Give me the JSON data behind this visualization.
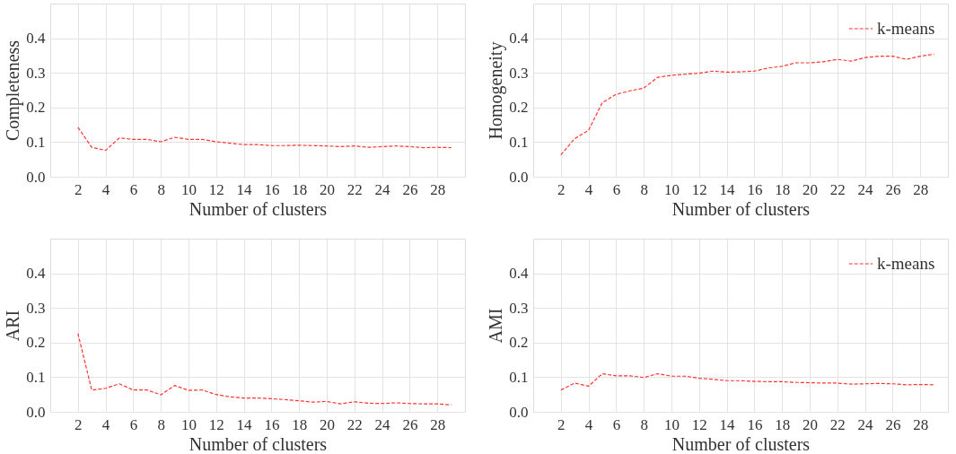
{
  "chart_data": [
    {
      "type": "line",
      "ylabel": "Completeness",
      "xlabel": "Number of clusters",
      "x": [
        2,
        3,
        4,
        5,
        6,
        7,
        8,
        9,
        10,
        11,
        12,
        13,
        14,
        15,
        16,
        17,
        18,
        19,
        20,
        21,
        22,
        23,
        24,
        25,
        26,
        27,
        28,
        29
      ],
      "xlim": [
        0,
        30
      ],
      "xticks": [
        2,
        4,
        6,
        8,
        10,
        12,
        14,
        16,
        18,
        20,
        22,
        24,
        26,
        28
      ],
      "ylim": [
        0,
        0.5
      ],
      "yticks": [
        {
          "value": 0,
          "label": "0.0"
        },
        {
          "value": 0.1,
          "label": "0.1"
        },
        {
          "value": 0.2,
          "label": "0.2"
        },
        {
          "value": 0.3,
          "label": "0.3"
        },
        {
          "value": 0.4,
          "label": "0.4"
        }
      ],
      "grid": true,
      "line_style": "dashed",
      "series": [
        {
          "color": "#ff3333",
          "values": [
            0.143,
            0.085,
            0.076,
            0.112,
            0.108,
            0.108,
            0.101,
            0.114,
            0.108,
            0.108,
            0.101,
            0.097,
            0.093,
            0.093,
            0.09,
            0.09,
            0.091,
            0.09,
            0.089,
            0.087,
            0.089,
            0.085,
            0.087,
            0.089,
            0.087,
            0.084,
            0.085,
            0.084
          ]
        }
      ]
    },
    {
      "type": "line",
      "ylabel": "Homogeneity",
      "xlabel": "Number of clusters",
      "x": [
        2,
        3,
        4,
        5,
        6,
        7,
        8,
        9,
        10,
        11,
        12,
        13,
        14,
        15,
        16,
        17,
        18,
        19,
        20,
        21,
        22,
        23,
        24,
        25,
        26,
        27,
        28,
        29
      ],
      "xlim": [
        0,
        30
      ],
      "xticks": [
        2,
        4,
        6,
        8,
        10,
        12,
        14,
        16,
        18,
        20,
        22,
        24,
        26,
        28
      ],
      "ylim": [
        0,
        0.5
      ],
      "yticks": [
        {
          "value": 0,
          "label": "0.0"
        },
        {
          "value": 0.1,
          "label": "0.1"
        },
        {
          "value": 0.2,
          "label": "0.2"
        },
        {
          "value": 0.3,
          "label": "0.3"
        },
        {
          "value": 0.4,
          "label": "0.4"
        }
      ],
      "grid": true,
      "line_style": "dashed",
      "legend": "top right",
      "series": [
        {
          "name": "k-means",
          "color": "#ff3333",
          "values": [
            0.063,
            0.11,
            0.134,
            0.214,
            0.238,
            0.248,
            0.256,
            0.287,
            0.293,
            0.296,
            0.299,
            0.305,
            0.302,
            0.303,
            0.305,
            0.314,
            0.319,
            0.329,
            0.329,
            0.332,
            0.339,
            0.334,
            0.344,
            0.348,
            0.348,
            0.339,
            0.348,
            0.354
          ]
        }
      ]
    },
    {
      "type": "line",
      "ylabel": "ARI",
      "xlabel": "Number of clusters",
      "x": [
        2,
        3,
        4,
        5,
        6,
        7,
        8,
        9,
        10,
        11,
        12,
        13,
        14,
        15,
        16,
        17,
        18,
        19,
        20,
        21,
        22,
        23,
        24,
        25,
        26,
        27,
        28,
        29
      ],
      "xlim": [
        0,
        30
      ],
      "xticks": [
        2,
        4,
        6,
        8,
        10,
        12,
        14,
        16,
        18,
        20,
        22,
        24,
        26,
        28
      ],
      "ylim": [
        0,
        0.5
      ],
      "yticks": [
        {
          "value": 0,
          "label": "0.0"
        },
        {
          "value": 0.1,
          "label": "0.1"
        },
        {
          "value": 0.2,
          "label": "0.2"
        },
        {
          "value": 0.3,
          "label": "0.3"
        },
        {
          "value": 0.4,
          "label": "0.4"
        }
      ],
      "grid": true,
      "line_style": "dashed",
      "series": [
        {
          "color": "#ff3333",
          "values": [
            0.226,
            0.063,
            0.068,
            0.081,
            0.063,
            0.063,
            0.049,
            0.076,
            0.062,
            0.063,
            0.05,
            0.043,
            0.04,
            0.04,
            0.038,
            0.035,
            0.032,
            0.028,
            0.03,
            0.023,
            0.029,
            0.025,
            0.024,
            0.026,
            0.024,
            0.023,
            0.023,
            0.02
          ]
        }
      ]
    },
    {
      "type": "line",
      "ylabel": "AMI",
      "xlabel": "Number of clusters",
      "x": [
        2,
        3,
        4,
        5,
        6,
        7,
        8,
        9,
        10,
        11,
        12,
        13,
        14,
        15,
        16,
        17,
        18,
        19,
        20,
        21,
        22,
        23,
        24,
        25,
        26,
        27,
        28,
        29
      ],
      "xlim": [
        0,
        30
      ],
      "xticks": [
        2,
        4,
        6,
        8,
        10,
        12,
        14,
        16,
        18,
        20,
        22,
        24,
        26,
        28
      ],
      "ylim": [
        0,
        0.5
      ],
      "yticks": [
        {
          "value": 0,
          "label": "0.0"
        },
        {
          "value": 0.1,
          "label": "0.1"
        },
        {
          "value": 0.2,
          "label": "0.2"
        },
        {
          "value": 0.3,
          "label": "0.3"
        },
        {
          "value": 0.4,
          "label": "0.4"
        }
      ],
      "grid": true,
      "line_style": "dashed",
      "legend": "top right",
      "series": [
        {
          "name": "k-means",
          "color": "#ff3333",
          "values": [
            0.063,
            0.083,
            0.074,
            0.11,
            0.104,
            0.104,
            0.099,
            0.11,
            0.103,
            0.103,
            0.097,
            0.094,
            0.09,
            0.09,
            0.088,
            0.087,
            0.087,
            0.085,
            0.084,
            0.083,
            0.083,
            0.08,
            0.081,
            0.082,
            0.081,
            0.078,
            0.079,
            0.078
          ]
        }
      ]
    }
  ]
}
